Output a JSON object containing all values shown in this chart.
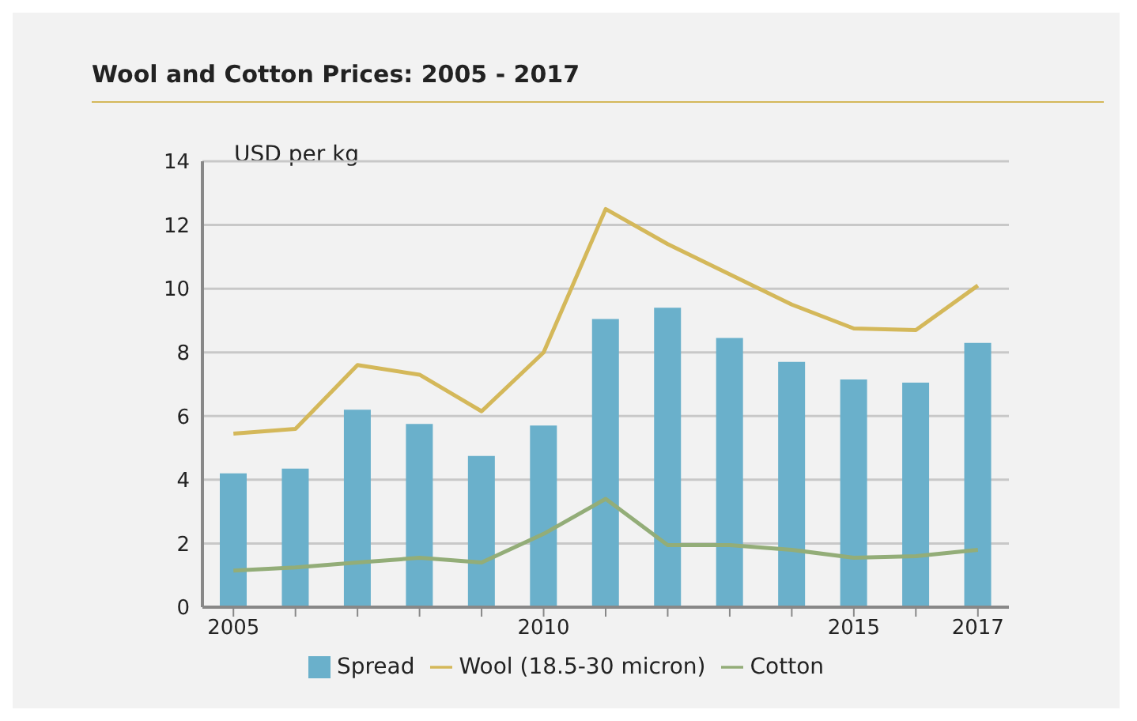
{
  "chart_data": {
    "type": "bar",
    "title": "Wool and Cotton Prices: 2005 - 2017",
    "ylabel": "USD per kg",
    "categories": [
      "2005",
      null,
      null,
      null,
      null,
      "2010",
      null,
      null,
      null,
      null,
      "2015",
      null,
      "2017"
    ],
    "series": [
      {
        "name": "Spread",
        "color": "#6ab0cb",
        "values": [
          4.2,
          4.35,
          6.2,
          5.75,
          4.75,
          5.7,
          9.05,
          9.4,
          8.45,
          7.7,
          7.15,
          7.05,
          8.3
        ]
      },
      {
        "name": "Wool (18.5-30 micron)",
        "type": "line",
        "color": "#d4b85a",
        "values": [
          5.45,
          5.6,
          7.6,
          7.3,
          6.15,
          8.0,
          12.5,
          11.4,
          10.45,
          9.5,
          8.75,
          8.7,
          10.1
        ]
      },
      {
        "name": "Cotton",
        "type": "line",
        "color": "#93ad78",
        "values": [
          1.15,
          1.25,
          1.4,
          1.55,
          1.4,
          2.3,
          3.4,
          1.95,
          1.95,
          1.8,
          1.55,
          1.6,
          1.8
        ]
      }
    ],
    "ylim": [
      0,
      14
    ],
    "yticks": [
      0,
      2,
      4,
      6,
      8,
      10,
      12,
      14
    ],
    "grid": "y",
    "legend": "bottom",
    "marker": "none",
    "line_style": "solid"
  }
}
